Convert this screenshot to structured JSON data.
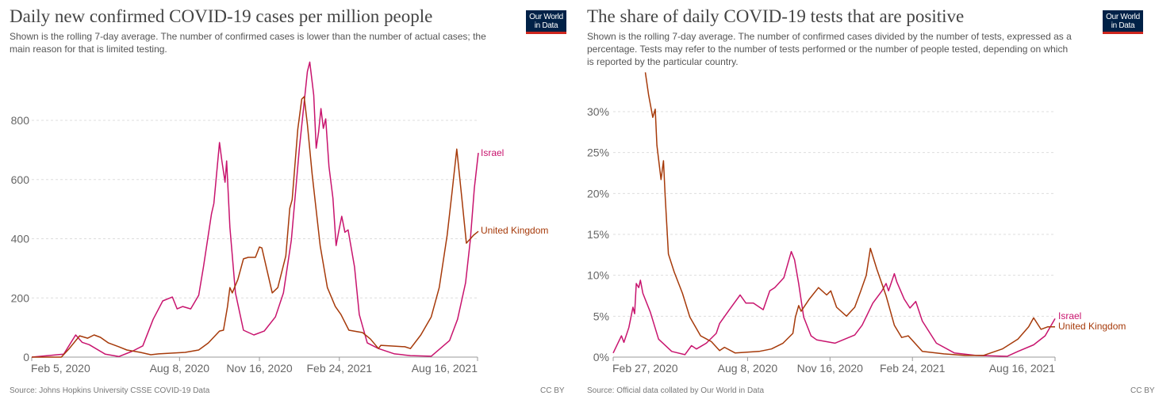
{
  "logo_text": [
    "Our World",
    "in Data"
  ],
  "colors": {
    "israel": "#c8146e",
    "uk": "#a63a0a",
    "grid": "#dddddd",
    "axis": "#999999",
    "tick_text": "#666666"
  },
  "left": {
    "title": "Daily new confirmed COVID-19 cases per million people",
    "subtitle_lines": [
      "Shown is the rolling 7-day average. The number of confirmed cases is lower than the number of actual cases; the",
      "main reason for that is limited testing."
    ],
    "source": "Source: Johns Hopkins University CSSE COVID-19 Data",
    "license": "CC BY"
  },
  "right": {
    "title": "The share of daily COVID-19 tests that are positive",
    "subtitle_lines": [
      "Shown is the rolling 7-day average. The number of confirmed cases divided by the number of tests, expressed as a",
      "percentage. Tests may refer to the number of tests performed or the number of people tested, depending on which",
      "is reported by the particular country."
    ],
    "source": "Source: Official data collated by Our World in Data",
    "license": "CC BY"
  },
  "chart_data": [
    {
      "type": "line",
      "title": "Daily new confirmed COVID-19 cases per million people",
      "x_unit": "days since Feb 5, 2020",
      "xlim": [
        0,
        558
      ],
      "ylim": [
        0,
        800
      ],
      "y_ticks": [
        {
          "value": 0,
          "label": "0"
        },
        {
          "value": 200,
          "label": "200"
        },
        {
          "value": 400,
          "label": "400"
        },
        {
          "value": 600,
          "label": "600"
        },
        {
          "value": 800,
          "label": "800"
        }
      ],
      "x_ticks": [
        {
          "value": 0,
          "label": "Feb 5, 2020"
        },
        {
          "value": 185,
          "label": "Aug 8, 2020"
        },
        {
          "value": 285,
          "label": "Nov 16, 2020"
        },
        {
          "value": 385,
          "label": "Feb 24, 2021"
        },
        {
          "value": 558,
          "label": "Aug 16, 2021"
        }
      ],
      "grid": true,
      "series": [
        {
          "name": "Israel",
          "color_key": "israel",
          "x": [
            0,
            40,
            55,
            63,
            72,
            92,
            109,
            126,
            139,
            152,
            164,
            176,
            182,
            189,
            199,
            209,
            215,
            225,
            228,
            235,
            238,
            242,
            244,
            248,
            255,
            265,
            278,
            291,
            305,
            315,
            325,
            335,
            345,
            348,
            353,
            356,
            359,
            362,
            365,
            368,
            372,
            377,
            381,
            384,
            388,
            392,
            396,
            404,
            410,
            420,
            434,
            454,
            474,
            500,
            523,
            533,
            543,
            549,
            554,
            559
          ],
          "y": [
            0,
            10,
            75,
            50,
            42,
            10,
            2,
            20,
            38,
            128,
            190,
            203,
            163,
            171,
            163,
            209,
            305,
            484,
            519,
            725,
            663,
            591,
            663,
            439,
            217,
            91,
            75,
            88,
            136,
            217,
            396,
            706,
            965,
            997,
            885,
            706,
            760,
            840,
            773,
            805,
            644,
            537,
            377,
            422,
            476,
            422,
            430,
            305,
            144,
            48,
            29,
            11,
            5,
            3,
            56,
            128,
            251,
            396,
            572,
            690
          ]
        },
        {
          "name": "United Kingdom",
          "color_key": "uk",
          "x": [
            0,
            37,
            47,
            60,
            70,
            78,
            86,
            96,
            109,
            119,
            136,
            149,
            159,
            192,
            209,
            221,
            235,
            240,
            245,
            248,
            251,
            258,
            265,
            271,
            280,
            285,
            288,
            301,
            308,
            318,
            323,
            326,
            333,
            338,
            341,
            345,
            351,
            361,
            370,
            380,
            387,
            397,
            414,
            424,
            434,
            437,
            467,
            474,
            487,
            500,
            510,
            520,
            526,
            532,
            538,
            544,
            553,
            559
          ],
          "y": [
            0,
            0,
            29,
            72,
            64,
            75,
            67,
            48,
            35,
            24,
            16,
            8,
            11,
            16,
            24,
            48,
            88,
            91,
            171,
            235,
            217,
            262,
            332,
            337,
            337,
            372,
            369,
            217,
            235,
            342,
            503,
            532,
            770,
            872,
            880,
            786,
            618,
            377,
            235,
            171,
            144,
            91,
            83,
            61,
            29,
            40,
            35,
            29,
            75,
            136,
            235,
            412,
            556,
            703,
            545,
            385,
            412,
            425
          ]
        }
      ]
    },
    {
      "type": "line",
      "title": "The share of daily COVID-19 tests that are positive",
      "x_unit": "days since Feb 5, 2020",
      "xlim": [
        22,
        558
      ],
      "ylim": [
        0,
        30
      ],
      "y_ticks": [
        {
          "value": 0,
          "label": "0%"
        },
        {
          "value": 5,
          "label": "5%"
        },
        {
          "value": 10,
          "label": "10%"
        },
        {
          "value": 15,
          "label": "15%"
        },
        {
          "value": 20,
          "label": "20%"
        },
        {
          "value": 25,
          "label": "25%"
        },
        {
          "value": 30,
          "label": "30%"
        }
      ],
      "x_ticks": [
        {
          "value": 22,
          "label": "Feb 27, 2020"
        },
        {
          "value": 185,
          "label": "Aug 8, 2020"
        },
        {
          "value": 285,
          "label": "Nov 16, 2020"
        },
        {
          "value": 385,
          "label": "Feb 24, 2021"
        },
        {
          "value": 558,
          "label": "Aug 16, 2021"
        }
      ],
      "grid": true,
      "series": [
        {
          "name": "Israel",
          "color_key": "israel",
          "x": [
            22,
            32,
            35,
            41,
            46,
            48,
            50,
            53,
            55,
            58,
            67,
            77,
            93,
            109,
            117,
            123,
            135,
            147,
            151,
            163,
            176,
            183,
            192,
            204,
            212,
            218,
            229,
            238,
            242,
            247,
            253,
            262,
            269,
            291,
            315,
            324,
            337,
            348,
            353,
            356,
            363,
            366,
            375,
            382,
            389,
            397,
            414,
            436,
            462,
            500,
            513,
            532,
            546,
            558
          ],
          "y": [
            0.5,
            2.6,
            1.8,
            3.6,
            6.1,
            5.3,
            9.0,
            8.5,
            9.4,
            7.8,
            5.5,
            2.2,
            0.7,
            0.3,
            1.4,
            1.0,
            1.7,
            2.9,
            4.1,
            5.8,
            7.6,
            6.6,
            6.6,
            5.8,
            8.1,
            8.5,
            9.7,
            12.9,
            11.9,
            9.0,
            4.9,
            2.6,
            2.1,
            1.7,
            2.7,
            3.9,
            6.6,
            8.1,
            9.0,
            8.1,
            10.2,
            9.2,
            7.1,
            6.0,
            6.8,
            4.4,
            1.7,
            0.5,
            0.2,
            0.1,
            0.7,
            1.5,
            2.6,
            4.7
          ]
        },
        {
          "name": "United Kingdom",
          "color_key": "uk",
          "x": [
            61,
            65,
            70,
            73,
            75,
            80,
            83,
            85,
            89,
            96,
            106,
            115,
            128,
            141,
            151,
            157,
            170,
            199,
            214,
            228,
            240,
            243,
            247,
            250,
            260,
            271,
            281,
            286,
            293,
            305,
            315,
            322,
            329,
            334,
            342,
            353,
            363,
            372,
            380,
            397,
            423,
            449,
            471,
            494,
            513,
            526,
            532,
            541,
            549,
            558
          ],
          "y": [
            34.8,
            32.0,
            29.3,
            30.3,
            25.9,
            21.7,
            24.0,
            19.7,
            12.6,
            10.4,
            7.8,
            4.9,
            2.6,
            1.9,
            0.8,
            1.2,
            0.5,
            0.7,
            1.0,
            1.7,
            2.9,
            4.9,
            6.3,
            5.6,
            7.1,
            8.5,
            7.6,
            8.1,
            6.1,
            5.0,
            6.1,
            8.0,
            10.0,
            13.3,
            10.7,
            7.5,
            3.9,
            2.4,
            2.6,
            0.7,
            0.4,
            0.2,
            0.2,
            1.0,
            2.2,
            3.7,
            4.8,
            3.4,
            3.7,
            3.7
          ]
        }
      ]
    }
  ]
}
